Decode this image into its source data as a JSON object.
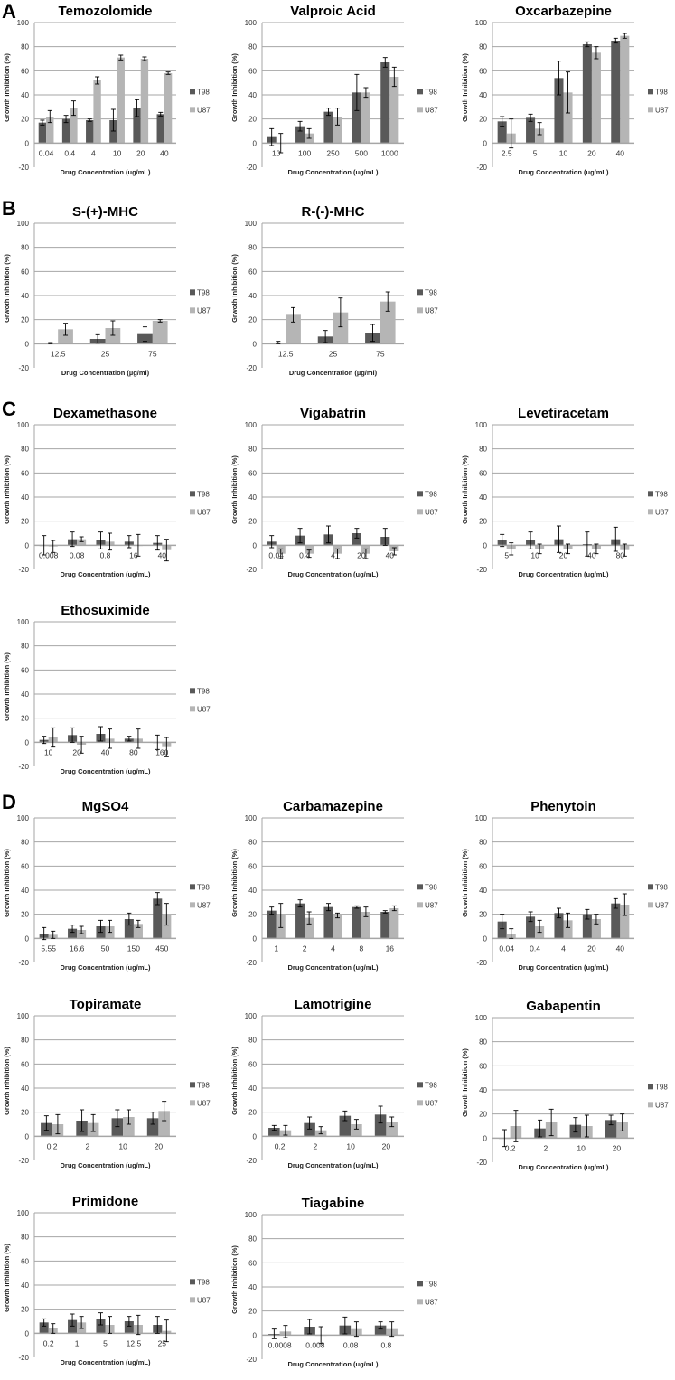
{
  "panels": [
    "A",
    "B",
    "C",
    "D"
  ],
  "colors": {
    "T98": "#595959",
    "U87": "#b5b5b5",
    "grid": "#a6a6a6",
    "error": "#000000"
  },
  "chart_data": [
    {
      "type": "bar",
      "title": "Temozolomide",
      "ylabel": "Growth Inhibition (%)",
      "xlabel": "Drug Concentration (ug/mL)",
      "ylim": [
        -20,
        100
      ],
      "yticks": [
        100,
        80,
        60,
        40,
        20,
        0,
        -20
      ],
      "legend": "right",
      "categories": [
        "0.04",
        "0.4",
        "4",
        "10",
        "20",
        "40"
      ],
      "series": [
        {
          "name": "T98",
          "values": [
            17,
            20,
            19,
            19,
            29,
            24
          ],
          "errors": [
            2,
            3,
            1,
            9,
            7,
            1.5
          ]
        },
        {
          "name": "U87",
          "values": [
            22,
            29,
            52,
            71,
            70,
            58
          ],
          "errors": [
            5,
            6,
            3,
            2,
            1.5,
            1
          ]
        }
      ]
    },
    {
      "type": "bar",
      "title": "Valproic Acid",
      "ylabel": "Growth Inhibition (%)",
      "xlabel": "Drug Concentration (ug/mL)",
      "ylim": [
        -20,
        100
      ],
      "yticks": [
        100,
        80,
        60,
        40,
        20,
        0,
        -20
      ],
      "legend": "right",
      "categories": [
        "10",
        "100",
        "250",
        "500",
        "1000"
      ],
      "series": [
        {
          "name": "T98",
          "values": [
            5,
            14,
            26,
            42,
            67
          ],
          "errors": [
            7,
            4,
            3,
            15,
            4
          ]
        },
        {
          "name": "U87",
          "values": [
            0,
            8,
            22,
            42,
            55
          ],
          "errors": [
            8,
            4,
            7,
            4,
            8
          ]
        }
      ]
    },
    {
      "type": "bar",
      "title": "Oxcarbazepine",
      "ylabel": "Growth Inhibition (%)",
      "xlabel": "Drug Concentration (ug/mL)",
      "ylim": [
        -20,
        100
      ],
      "yticks": [
        100,
        80,
        60,
        40,
        20,
        0,
        -20
      ],
      "legend": "right",
      "categories": [
        "2.5",
        "5",
        "10",
        "20",
        "40"
      ],
      "series": [
        {
          "name": "T98",
          "values": [
            18,
            21,
            54,
            82,
            85
          ],
          "errors": [
            4,
            3,
            14,
            2,
            2
          ]
        },
        {
          "name": "U87",
          "values": [
            8,
            12,
            42,
            75,
            89
          ],
          "errors": [
            12,
            5,
            17,
            5,
            2
          ]
        }
      ]
    },
    {
      "type": "bar",
      "title": "S-(+)-MHC",
      "ylabel": "Grwoth Inhibition (%)",
      "xlabel": "Drug Concentration (µg/ml)",
      "ylim": [
        -20,
        100
      ],
      "yticks": [
        100,
        80,
        60,
        40,
        20,
        0,
        -20
      ],
      "legend": "right",
      "categories": [
        "12.5",
        "25",
        "75"
      ],
      "series": [
        {
          "name": "T98",
          "values": [
            0.5,
            4,
            8
          ],
          "errors": [
            0.5,
            3.5,
            6
          ]
        },
        {
          "name": "U87",
          "values": [
            12,
            13,
            19
          ],
          "errors": [
            5,
            6,
            1
          ]
        }
      ]
    },
    {
      "type": "bar",
      "title": "R-(-)-MHC",
      "ylabel": "Grwoth Inhibition (%)",
      "xlabel": "Drug Concentration (µg/ml)",
      "ylim": [
        -20,
        100
      ],
      "yticks": [
        100,
        80,
        60,
        40,
        20,
        0,
        -20
      ],
      "legend": "right",
      "categories": [
        "12.5",
        "25",
        "75"
      ],
      "series": [
        {
          "name": "T98",
          "values": [
            1,
            6,
            9
          ],
          "errors": [
            1,
            5,
            7
          ]
        },
        {
          "name": "U87",
          "values": [
            24,
            26,
            35
          ],
          "errors": [
            6,
            12,
            8
          ]
        }
      ]
    },
    {
      "type": "bar",
      "title": "Dexamethasone",
      "ylabel": "Growth Inhibition (%)",
      "xlabel": "Drug Concentration (ug/mL)",
      "ylim": [
        -20,
        100
      ],
      "yticks": [
        100,
        80,
        60,
        40,
        20,
        0,
        -20
      ],
      "legend": "right",
      "categories": [
        "0.008",
        "0.08",
        "0.8",
        "16",
        "40"
      ],
      "series": [
        {
          "name": "T98",
          "values": [
            0,
            5,
            4,
            3,
            2
          ],
          "errors": [
            8,
            6,
            7,
            5,
            6
          ]
        },
        {
          "name": "U87",
          "values": [
            -1,
            5,
            3,
            0,
            -4
          ],
          "errors": [
            5,
            2,
            7,
            9,
            9
          ]
        }
      ]
    },
    {
      "type": "bar",
      "title": "Vigabatrin",
      "ylabel": "Growth Inhibition (%)",
      "xlabel": "Drug Concentration (ug/mL)",
      "ylim": [
        -20,
        100
      ],
      "yticks": [
        100,
        80,
        60,
        40,
        20,
        0,
        -20
      ],
      "legend": "right",
      "categories": [
        "0.04",
        "0.4",
        "4",
        "20",
        "40"
      ],
      "series": [
        {
          "name": "T98",
          "values": [
            3,
            8,
            9,
            10,
            7
          ],
          "errors": [
            5,
            6,
            7,
            4,
            7
          ]
        },
        {
          "name": "U87",
          "values": [
            -7,
            -7,
            -7,
            -7,
            -5
          ],
          "errors": [
            4,
            3,
            4,
            4,
            3
          ]
        }
      ]
    },
    {
      "type": "bar",
      "title": "Levetiracetam",
      "ylabel": "Growth Inhibition (%)",
      "xlabel": "Drug Concentration (ug/mL)",
      "ylim": [
        -20,
        100
      ],
      "yticks": [
        100,
        80,
        60,
        40,
        20,
        0,
        -20
      ],
      "legend": "right",
      "categories": [
        "5",
        "10",
        "20",
        "40",
        "80"
      ],
      "series": [
        {
          "name": "T98",
          "values": [
            4,
            4,
            5,
            1,
            5
          ],
          "errors": [
            5,
            7,
            11,
            10,
            10
          ]
        },
        {
          "name": "U87",
          "values": [
            -3,
            -3,
            -3,
            -3,
            -4
          ],
          "errors": [
            5,
            4,
            4,
            4,
            5
          ]
        }
      ]
    },
    {
      "type": "bar",
      "title": "Ethosuximide",
      "ylabel": "Growth Inhibition (%)",
      "xlabel": "Drug Concentration (ug/mL)",
      "ylim": [
        -20,
        100
      ],
      "yticks": [
        100,
        80,
        60,
        40,
        20,
        0,
        -20
      ],
      "legend": "right",
      "categories": [
        "10",
        "20",
        "40",
        "80",
        "160"
      ],
      "series": [
        {
          "name": "T98",
          "values": [
            2,
            6,
            7,
            3,
            0
          ],
          "errors": [
            3,
            6,
            6,
            2,
            6
          ]
        },
        {
          "name": "U87",
          "values": [
            4,
            -2,
            3,
            3,
            -4
          ],
          "errors": [
            8,
            7,
            8,
            8,
            8
          ]
        }
      ]
    },
    {
      "type": "bar",
      "title": "MgSO4",
      "ylabel": "Growth Inhibition (%)",
      "xlabel": "Drug Concentration (ug/mL)",
      "ylim": [
        -20,
        100
      ],
      "yticks": [
        100,
        80,
        60,
        40,
        20,
        0,
        -20
      ],
      "legend": "right",
      "categories": [
        "5.55",
        "16.6",
        "50",
        "150",
        "450"
      ],
      "series": [
        {
          "name": "T98",
          "values": [
            4,
            8,
            10,
            16,
            33
          ],
          "errors": [
            5,
            3,
            5,
            5,
            5
          ]
        },
        {
          "name": "U87",
          "values": [
            3,
            7,
            10,
            12,
            20
          ],
          "errors": [
            3,
            3,
            5,
            3,
            9
          ]
        }
      ]
    },
    {
      "type": "bar",
      "title": "Carbamazepine",
      "ylabel": "Growth Inhibition (%)",
      "xlabel": "Drug Concentration (ug/mL)",
      "ylim": [
        -20,
        100
      ],
      "yticks": [
        100,
        80,
        60,
        40,
        20,
        0,
        -20
      ],
      "legend": "right",
      "categories": [
        "1",
        "2",
        "4",
        "8",
        "16"
      ],
      "series": [
        {
          "name": "T98",
          "values": [
            23,
            29,
            26,
            26,
            22
          ],
          "errors": [
            3,
            3,
            3,
            1,
            1
          ]
        },
        {
          "name": "U87",
          "values": [
            19,
            17,
            19,
            22,
            25
          ],
          "errors": [
            10,
            5,
            2,
            4,
            2
          ]
        }
      ]
    },
    {
      "type": "bar",
      "title": "Phenytoin",
      "ylabel": "Growth Inhibition (%)",
      "xlabel": "Drug Concentration (ug/mL)",
      "ylim": [
        -20,
        100
      ],
      "yticks": [
        100,
        80,
        60,
        40,
        20,
        0,
        -20
      ],
      "legend": "right",
      "categories": [
        "0.04",
        "0.4",
        "4",
        "20",
        "40"
      ],
      "series": [
        {
          "name": "T98",
          "values": [
            14,
            18,
            21,
            20,
            29
          ],
          "errors": [
            6,
            4,
            4,
            4,
            4
          ]
        },
        {
          "name": "U87",
          "values": [
            4,
            10,
            15,
            16,
            28
          ],
          "errors": [
            4,
            5,
            6,
            4,
            9
          ]
        }
      ]
    },
    {
      "type": "bar",
      "title": "Topiramate",
      "ylabel": "Growth Inhibition (%)",
      "xlabel": "Drug Concentration (ug/mL)",
      "ylim": [
        -20,
        100
      ],
      "yticks": [
        100,
        80,
        60,
        40,
        20,
        0,
        -20
      ],
      "legend": "right",
      "categories": [
        "0.2",
        "2",
        "10",
        "20"
      ],
      "series": [
        {
          "name": "T98",
          "values": [
            11,
            13,
            15,
            15
          ],
          "errors": [
            6,
            9,
            7,
            5
          ]
        },
        {
          "name": "U87",
          "values": [
            10,
            11,
            16,
            21
          ],
          "errors": [
            8,
            7,
            6,
            8
          ]
        }
      ]
    },
    {
      "type": "bar",
      "title": "Lamotrigine",
      "ylabel": "Growth Inhibition (%)",
      "xlabel": "Drug Concentration (ug/mL)",
      "ylim": [
        -20,
        100
      ],
      "yticks": [
        100,
        80,
        60,
        40,
        20,
        0,
        -20
      ],
      "legend": "right",
      "categories": [
        "0.2",
        "2",
        "10",
        "20"
      ],
      "series": [
        {
          "name": "T98",
          "values": [
            7,
            11,
            17,
            18
          ],
          "errors": [
            2,
            5,
            4,
            7
          ]
        },
        {
          "name": "U87",
          "values": [
            5,
            5,
            10,
            12
          ],
          "errors": [
            4,
            3,
            4,
            4
          ]
        }
      ]
    },
    {
      "type": "bar",
      "title": "Gabapentin",
      "ylabel": "Growth Inhibition (%)",
      "xlabel": "Drug Concentration (ug/mL)",
      "ylim": [
        -20,
        100
      ],
      "yticks": [
        100,
        80,
        60,
        40,
        20,
        0,
        -20
      ],
      "legend": "right",
      "categories": [
        "0.2",
        "2",
        "10",
        "20"
      ],
      "series": [
        {
          "name": "T98",
          "values": [
            0,
            8,
            11,
            15
          ],
          "errors": [
            7,
            7,
            6,
            4
          ]
        },
        {
          "name": "U87",
          "values": [
            10,
            13,
            10,
            13
          ],
          "errors": [
            13,
            11,
            9,
            7
          ]
        }
      ]
    },
    {
      "type": "bar",
      "title": "Primidone",
      "ylabel": "Growth Inhibition (%)",
      "xlabel": "Drug Concentration (ug/mL)",
      "ylim": [
        -20,
        100
      ],
      "yticks": [
        100,
        80,
        60,
        40,
        20,
        0,
        -20
      ],
      "legend": "right",
      "categories": [
        "0.2",
        "1",
        "5",
        "12.5",
        "25"
      ],
      "series": [
        {
          "name": "T98",
          "values": [
            9,
            11,
            12,
            10,
            7
          ],
          "errors": [
            3,
            5,
            5,
            4,
            7
          ]
        },
        {
          "name": "U87",
          "values": [
            4,
            9,
            7,
            7,
            2
          ],
          "errors": [
            4,
            5,
            7,
            8,
            9
          ]
        }
      ]
    },
    {
      "type": "bar",
      "title": "Tiagabine",
      "ylabel": "Growth Inhibition (%)",
      "xlabel": "Drug Concentration (ug/mL)",
      "ylim": [
        -20,
        100
      ],
      "yticks": [
        100,
        80,
        60,
        40,
        20,
        0,
        -20
      ],
      "legend": "right",
      "categories": [
        "0.0008",
        "0.008",
        "0.08",
        "0.8"
      ],
      "series": [
        {
          "name": "T98",
          "values": [
            1,
            7,
            8,
            8
          ],
          "errors": [
            4,
            6,
            7,
            3
          ]
        },
        {
          "name": "U87",
          "values": [
            3,
            0,
            5,
            5
          ],
          "errors": [
            5,
            7,
            6,
            6
          ]
        }
      ]
    }
  ]
}
